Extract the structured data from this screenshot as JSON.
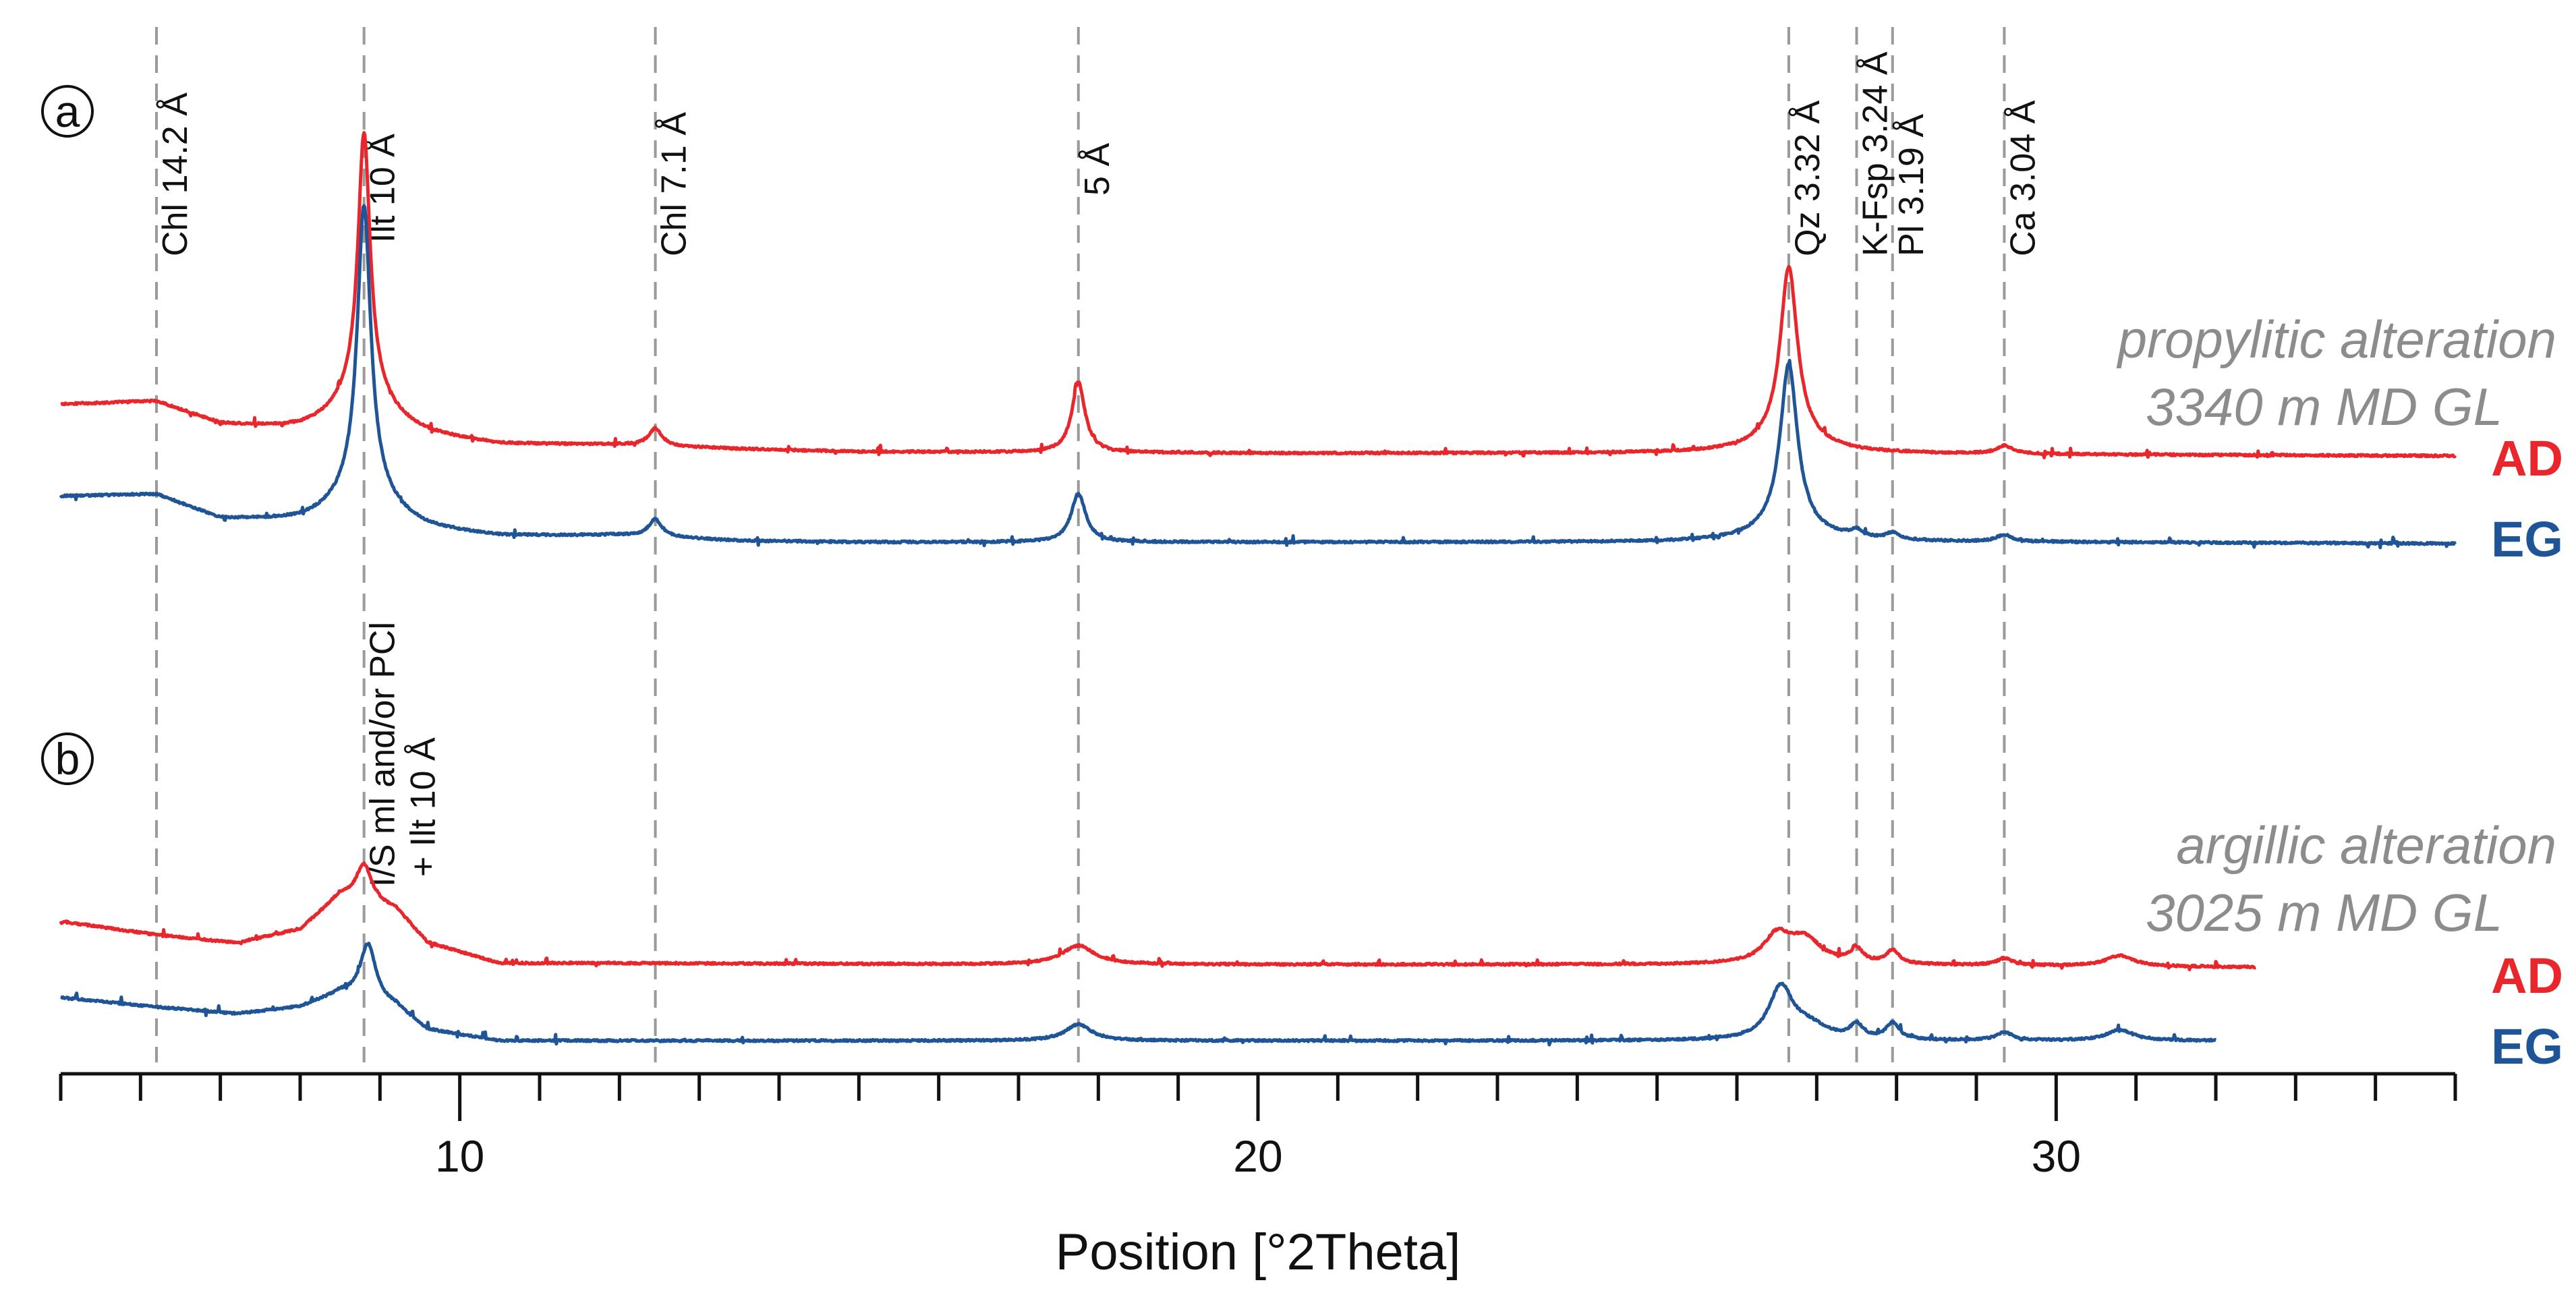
{
  "chart_data": {
    "type": "line",
    "title": "",
    "xlabel": "Position [°2Theta]",
    "ylabel": "",
    "xlim": [
      5,
      35
    ],
    "x_ticks": [
      10,
      20,
      30
    ],
    "x_tick_labels": [
      "10",
      "20",
      "30"
    ],
    "colors": {
      "AD": "#e8262b",
      "EG": "#1f5597",
      "ref_lines": "#9a9a9a"
    },
    "reference_lines": [
      {
        "x": 6.2,
        "label": "Chl 14.2 Å"
      },
      {
        "x": 8.8,
        "label": "Ilt 10 Å"
      },
      {
        "x": 12.45,
        "label": "Chl 7.1 Å"
      },
      {
        "x": 17.75,
        "label": "5 Å"
      },
      {
        "x": 26.65,
        "label": "Qz 3.32 Å"
      },
      {
        "x": 27.5,
        "label": "K-Fsp 3.24 Å"
      },
      {
        "x": 27.95,
        "label": "Pl 3.19 Å"
      },
      {
        "x": 29.35,
        "label": "Ca 3.04 Å"
      }
    ],
    "panels": [
      {
        "letter": "a",
        "condition": [
          "propylitic alteration",
          "3340 m MD GL"
        ],
        "series": [
          {
            "name": "AD",
            "label": "AD",
            "baseline": 0.05,
            "x_end": 35,
            "edge": {
              "x": 5.0,
              "y": 0.0
            },
            "noise": 0.007,
            "background": [
              [
                5.0,
                0.4
              ],
              [
                6.2,
                0.42
              ],
              [
                7.0,
                0.25
              ],
              [
                8.0,
                0.2
              ],
              [
                8.8,
                0.22
              ],
              [
                9.6,
                0.15
              ],
              [
                10.5,
                0.1
              ],
              [
                12.0,
                0.1
              ],
              [
                13.5,
                0.07
              ],
              [
                15.0,
                0.05
              ],
              [
                20.0,
                0.04
              ],
              [
                26.0,
                0.04
              ],
              [
                30.0,
                0.03
              ],
              [
                35.0,
                0.02
              ]
            ],
            "peaks": [
              {
                "x": 8.8,
                "height": 1.9,
                "width": 0.09
              },
              {
                "x": 8.8,
                "height": 0.3,
                "width": 0.4
              },
              {
                "x": 12.45,
                "height": 0.13,
                "width": 0.1
              },
              {
                "x": 17.75,
                "height": 0.52,
                "width": 0.1
              },
              {
                "x": 26.65,
                "height": 1.28,
                "width": 0.13
              },
              {
                "x": 26.65,
                "height": 0.1,
                "width": 0.5
              },
              {
                "x": 29.35,
                "height": 0.06,
                "width": 0.12
              }
            ]
          },
          {
            "name": "EG",
            "label": "EG",
            "baseline": 0.0,
            "x_end": 35,
            "edge": {
              "x": 5.0,
              "y": 0.0
            },
            "noise": 0.007,
            "background": [
              [
                5.0,
                0.37
              ],
              [
                6.2,
                0.38
              ],
              [
                7.0,
                0.2
              ],
              [
                8.0,
                0.17
              ],
              [
                8.8,
                0.2
              ],
              [
                9.6,
                0.11
              ],
              [
                10.5,
                0.07
              ],
              [
                12.0,
                0.08
              ],
              [
                13.5,
                0.04
              ],
              [
                15.0,
                0.03
              ],
              [
                20.0,
                0.03
              ],
              [
                26.0,
                0.03
              ],
              [
                30.0,
                0.03
              ],
              [
                35.0,
                0.02
              ]
            ],
            "peaks": [
              {
                "x": 8.8,
                "height": 2.08,
                "width": 0.1
              },
              {
                "x": 8.8,
                "height": 0.25,
                "width": 0.4
              },
              {
                "x": 12.45,
                "height": 0.13,
                "width": 0.1
              },
              {
                "x": 17.75,
                "height": 0.36,
                "width": 0.11
              },
              {
                "x": 26.65,
                "height": 1.22,
                "width": 0.13
              },
              {
                "x": 26.65,
                "height": 0.1,
                "width": 0.5
              },
              {
                "x": 27.5,
                "height": 0.05,
                "width": 0.1
              },
              {
                "x": 27.95,
                "height": 0.05,
                "width": 0.1
              },
              {
                "x": 29.35,
                "height": 0.05,
                "width": 0.12
              }
            ]
          }
        ]
      },
      {
        "letter": "b",
        "condition": [
          "argillic alteration",
          "3025 m MD GL"
        ],
        "series": [
          {
            "name": "AD",
            "label": "AD",
            "baseline": 0.05,
            "x_end": 32.5,
            "edge": {
              "x": 5.0,
              "y": 0.0
            },
            "noise": 0.007,
            "background": [
              [
                5.0,
                0.36
              ],
              [
                6.2,
                0.26
              ],
              [
                7.2,
                0.2
              ],
              [
                8.0,
                0.3
              ],
              [
                8.5,
                0.55
              ],
              [
                9.2,
                0.45
              ],
              [
                9.6,
                0.2
              ],
              [
                10.5,
                0.05
              ],
              [
                12.0,
                0.05
              ],
              [
                17.0,
                0.04
              ],
              [
                26.0,
                0.04
              ],
              [
                30.0,
                0.03
              ],
              [
                32.5,
                0.02
              ]
            ],
            "peaks": [
              {
                "x": 8.8,
                "height": 0.28,
                "width": 0.12
              },
              {
                "x": 17.75,
                "height": 0.14,
                "width": 0.25
              },
              {
                "x": 26.5,
                "height": 0.2,
                "width": 0.2
              },
              {
                "x": 26.85,
                "height": 0.18,
                "width": 0.25
              },
              {
                "x": 27.5,
                "height": 0.1,
                "width": 0.1
              },
              {
                "x": 27.95,
                "height": 0.1,
                "width": 0.1
              },
              {
                "x": 29.35,
                "height": 0.05,
                "width": 0.12
              },
              {
                "x": 30.8,
                "height": 0.08,
                "width": 0.2
              }
            ]
          },
          {
            "name": "EG",
            "label": "EG",
            "baseline": 0.0,
            "x_end": 32.0,
            "edge": {
              "x": 5.0,
              "y": 0.0
            },
            "noise": 0.007,
            "background": [
              [
                5.0,
                0.32
              ],
              [
                6.2,
                0.25
              ],
              [
                7.2,
                0.2
              ],
              [
                8.0,
                0.25
              ],
              [
                8.5,
                0.35
              ],
              [
                9.2,
                0.25
              ],
              [
                9.6,
                0.08
              ],
              [
                10.5,
                0.0
              ],
              [
                12.0,
                0.0
              ],
              [
                17.0,
                0.0
              ],
              [
                26.0,
                0.0
              ],
              [
                30.0,
                0.0
              ],
              [
                32.0,
                0.0
              ]
            ],
            "peaks": [
              {
                "x": 8.85,
                "height": 0.42,
                "width": 0.12
              },
              {
                "x": 17.75,
                "height": 0.12,
                "width": 0.2
              },
              {
                "x": 26.55,
                "height": 0.38,
                "width": 0.18
              },
              {
                "x": 26.9,
                "height": 0.1,
                "width": 0.3
              },
              {
                "x": 27.5,
                "height": 0.1,
                "width": 0.1
              },
              {
                "x": 27.95,
                "height": 0.12,
                "width": 0.1
              },
              {
                "x": 29.35,
                "height": 0.06,
                "width": 0.12
              },
              {
                "x": 30.8,
                "height": 0.08,
                "width": 0.2
              }
            ]
          }
        ]
      }
    ],
    "annotations": [
      {
        "panel": "b",
        "x": 8.8,
        "lines": [
          "I/S ml and/or PCl",
          "+ Ilt 10 Å"
        ]
      }
    ]
  }
}
